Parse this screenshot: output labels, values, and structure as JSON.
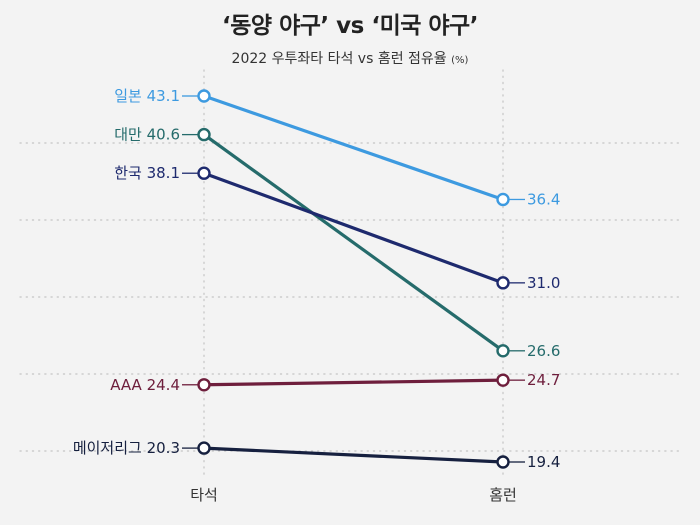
{
  "chart_data": {
    "type": "line",
    "title": "‘동양 야구’ vs ‘미국 야구’",
    "subtitle": "2022 우투좌타 타석 vs 홈런 점유율",
    "unit": "(%)",
    "categories": [
      "타석",
      "홈런"
    ],
    "ylim": [
      15,
      47
    ],
    "grid": true,
    "legend": "none",
    "series": [
      {
        "name": "일본",
        "values": [
          43.1,
          36.4
        ],
        "labels": [
          "43.1",
          "36.4"
        ],
        "color": "#3d9ae0"
      },
      {
        "name": "대만",
        "values": [
          40.6,
          26.6
        ],
        "labels": [
          "40.6",
          "26.6"
        ],
        "color": "#256b6b"
      },
      {
        "name": "한국",
        "values": [
          38.1,
          31.0
        ],
        "labels": [
          "38.1",
          "31.0"
        ],
        "color": "#1e2a6e"
      },
      {
        "name": "AAA",
        "values": [
          24.4,
          24.7
        ],
        "labels": [
          "24.4",
          "24.7"
        ],
        "color": "#6e1e3c"
      },
      {
        "name": "메이저리그",
        "values": [
          20.3,
          19.4
        ],
        "labels": [
          "20.3",
          "19.4"
        ],
        "color": "#16203f"
      }
    ]
  }
}
